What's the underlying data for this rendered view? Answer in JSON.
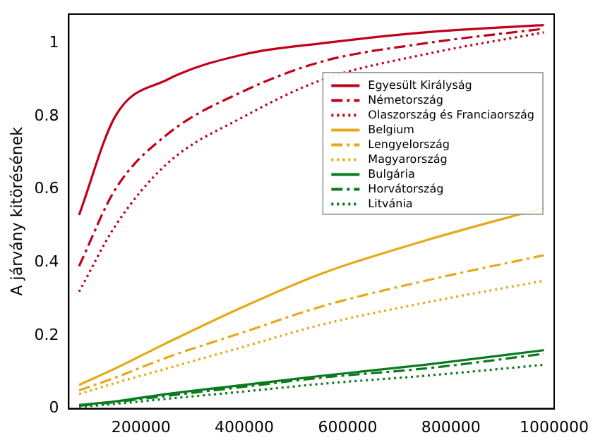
{
  "chart_data": {
    "type": "line",
    "ylabel": "A járvány kitörésének",
    "x": [
      80000,
      150000,
      250000,
      400000,
      550000,
      750000,
      980000
    ],
    "xlim": [
      60000,
      1000000
    ],
    "xticks": [
      200000,
      400000,
      600000,
      800000,
      1000000
    ],
    "ylim": [
      0,
      1.08
    ],
    "yticks": [
      0,
      0.2,
      0.4,
      0.6,
      0.8,
      1.0
    ],
    "grid": false,
    "legend": "right",
    "marker": "none",
    "series": [
      {
        "name": "Egyesült Királyság",
        "color": "#c0001a",
        "line_style": "solid",
        "values": [
          0.53,
          0.8,
          0.9,
          0.97,
          1.0,
          1.03,
          1.05
        ]
      },
      {
        "name": "Németország",
        "color": "#c0001a",
        "line_style": "dashdot",
        "values": [
          0.39,
          0.6,
          0.75,
          0.87,
          0.95,
          1.0,
          1.04
        ]
      },
      {
        "name": "Olaszország és Franciaország",
        "color": "#c0001a",
        "line_style": "dotted",
        "values": [
          0.32,
          0.5,
          0.67,
          0.8,
          0.9,
          0.97,
          1.03
        ]
      },
      {
        "name": "Belgium",
        "color": "#e6a817",
        "line_style": "solid",
        "values": [
          0.065,
          0.11,
          0.18,
          0.28,
          0.37,
          0.46,
          0.55
        ]
      },
      {
        "name": "Lengyelország",
        "color": "#e6a817",
        "line_style": "dashdot",
        "values": [
          0.05,
          0.085,
          0.14,
          0.21,
          0.28,
          0.35,
          0.42
        ]
      },
      {
        "name": "Magyarország",
        "color": "#e6a817",
        "line_style": "dotted",
        "values": [
          0.04,
          0.07,
          0.11,
          0.17,
          0.23,
          0.29,
          0.35
        ]
      },
      {
        "name": "Bulgária",
        "color": "#0a7a1e",
        "line_style": "solid",
        "values": [
          0.01,
          0.02,
          0.04,
          0.065,
          0.09,
          0.12,
          0.16
        ]
      },
      {
        "name": "Horvátország",
        "color": "#0a7a1e",
        "line_style": "dashdot",
        "values": [
          0.008,
          0.018,
          0.035,
          0.06,
          0.085,
          0.11,
          0.15
        ]
      },
      {
        "name": "Litvánia",
        "color": "#0a7a1e",
        "line_style": "dotted",
        "values": [
          0.005,
          0.013,
          0.027,
          0.047,
          0.068,
          0.09,
          0.12
        ]
      }
    ]
  }
}
